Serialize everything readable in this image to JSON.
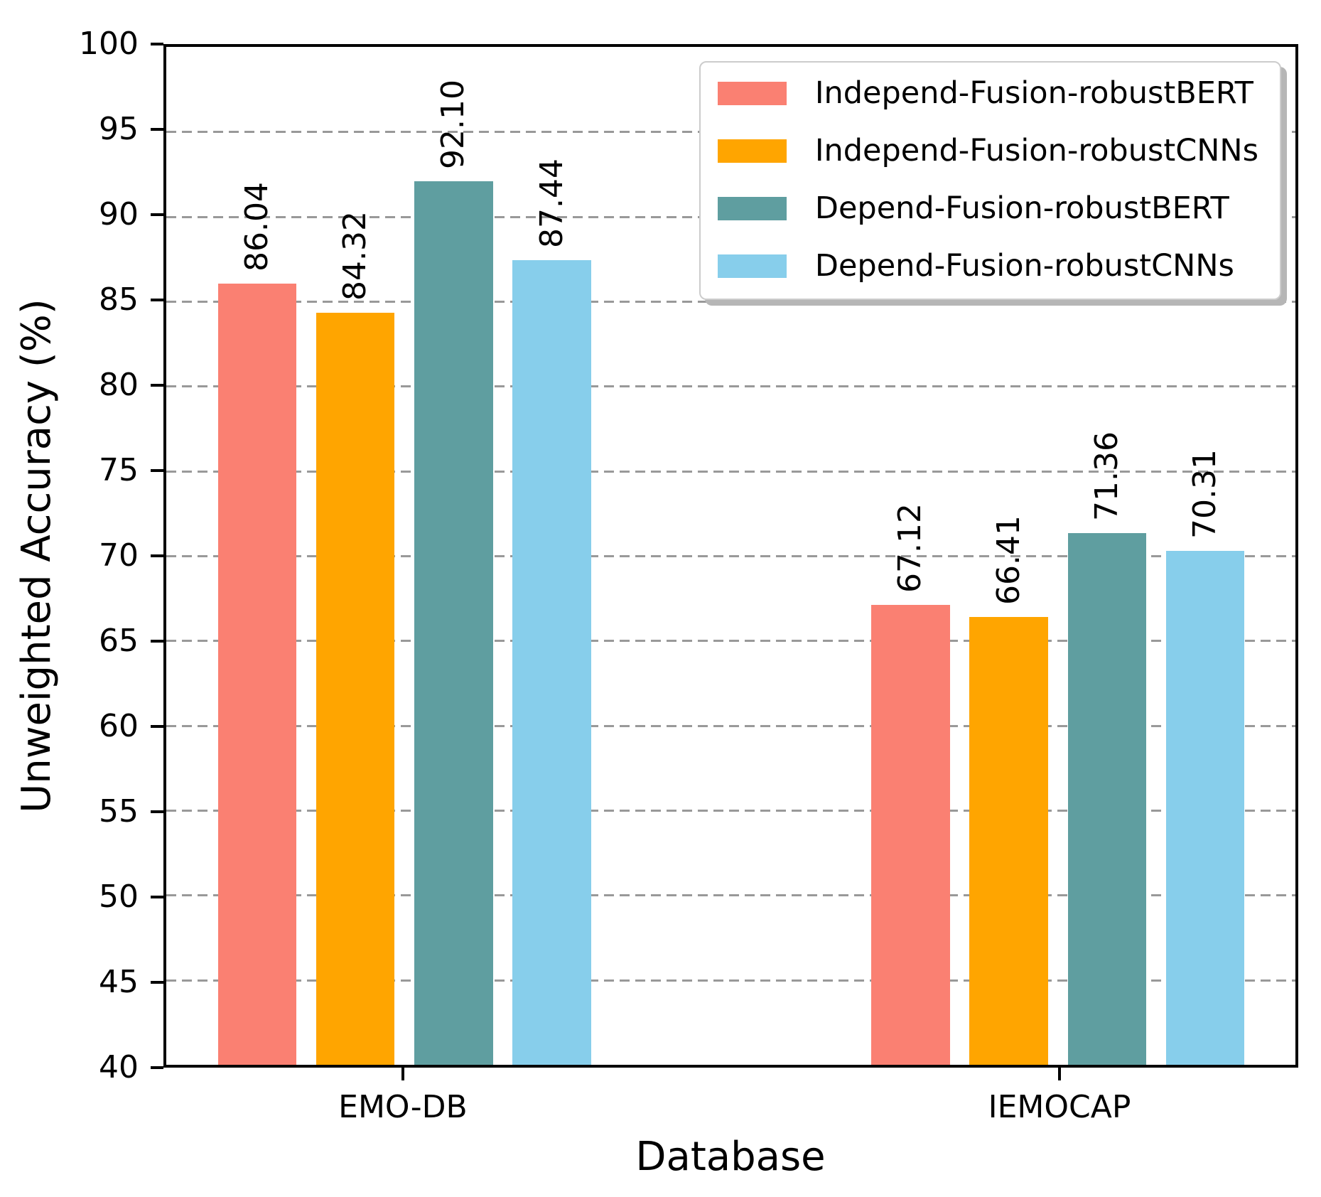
{
  "chart_data": {
    "type": "bar",
    "title": "",
    "xlabel": "Database",
    "ylabel": "Unweighted Accuracy (%)",
    "categories": [
      "EMO-DB",
      "IEMOCAP"
    ],
    "series": [
      {
        "name": "Independ-Fusion-robustBERT",
        "color": "#FA8072",
        "values": [
          86.04,
          67.12
        ]
      },
      {
        "name": "Independ-Fusion-robustCNNs",
        "color": "#FFA500",
        "values": [
          84.32,
          66.41
        ]
      },
      {
        "name": "Depend-Fusion-robustBERT",
        "color": "#5F9EA0",
        "values": [
          92.1,
          71.36
        ]
      },
      {
        "name": "Depend-Fusion-robustCNNs",
        "color": "#87CEEB",
        "values": [
          87.44,
          70.31
        ]
      }
    ],
    "bar_value_labels": [
      "86.04",
      "84.32",
      "92.10",
      "87.44",
      "67.12",
      "66.41",
      "71.36",
      "70.31"
    ],
    "value_label_rotation_deg": 90,
    "ylim": [
      40,
      100
    ],
    "yticks": [
      40,
      45,
      50,
      55,
      60,
      65,
      70,
      75,
      80,
      85,
      90,
      95,
      100
    ],
    "grid": "horizontal-dashed",
    "legend_position": "upper-right"
  },
  "colors": {
    "grid": "#999999",
    "axis": "#000000",
    "legend_border": "#cccccc",
    "legend_shadow": "#b6b6b6",
    "background": "#ffffff"
  }
}
